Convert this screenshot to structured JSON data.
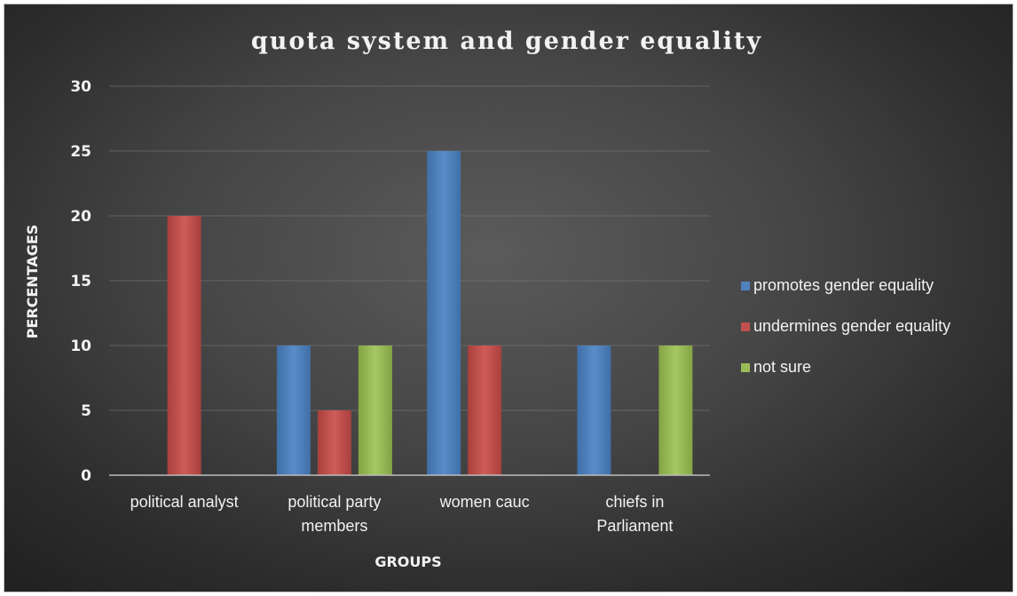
{
  "chart_data": {
    "type": "bar",
    "title": "quota system and gender equality",
    "xlabel": "GROUPS",
    "ylabel": "PERCENTAGES",
    "categories": [
      [
        "political analyst"
      ],
      [
        "political party",
        "members"
      ],
      [
        "women cauc"
      ],
      [
        "chiefs in",
        "Parliament"
      ]
    ],
    "series": [
      {
        "name": "promotes gender equality",
        "color": "#4f81bd",
        "values": [
          0,
          10,
          25,
          10
        ]
      },
      {
        "name": "undermines gender equality",
        "color": "#c0504d",
        "values": [
          20,
          5,
          10,
          0
        ]
      },
      {
        "name": "not sure",
        "color": "#9bbb59",
        "values": [
          0,
          10,
          0,
          10
        ]
      }
    ],
    "ylim": [
      0,
      30
    ],
    "yticks": [
      0,
      5,
      10,
      15,
      20,
      25,
      30
    ],
    "grid": true,
    "legend": "right"
  }
}
